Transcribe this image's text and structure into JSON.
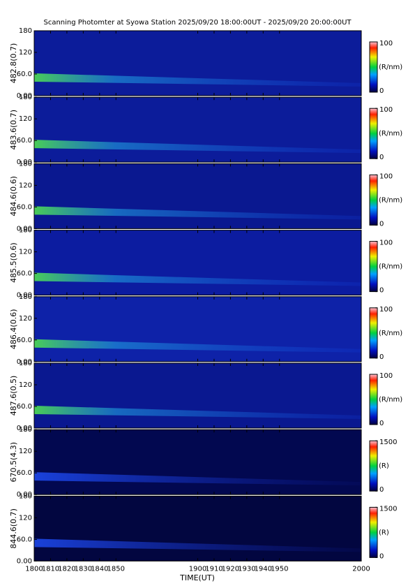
{
  "chart_data": {
    "type": "heatmap",
    "title": "Scanning Photomter at Syowa Station 2025/09/20 18:00:00UT - 2025/09/20 20:00:00UT",
    "xlabel": "TIME(UT)",
    "xlim": [
      1800,
      2000
    ],
    "xticks": [
      1800,
      1810,
      1820,
      1830,
      1840,
      1850,
      1900,
      1910,
      1920,
      1930,
      1940,
      1950,
      2000
    ],
    "panels": [
      {
        "ylabel": "482.8(0.7)",
        "ylim": [
          0,
          180
        ],
        "yticks": [
          {
            "value": 0,
            "label": "0.00"
          },
          {
            "value": 60,
            "label": "60.0"
          },
          120,
          180
        ],
        "clim": [
          0,
          100
        ],
        "cticks": [
          0,
          100
        ],
        "clabel": "(R/nm)"
      },
      {
        "ylabel": "483.6(0.7)",
        "ylim": [
          0,
          180
        ],
        "yticks": [
          {
            "value": 0,
            "label": "0.00"
          },
          {
            "value": 60,
            "label": "60.0"
          },
          120,
          180
        ],
        "clim": [
          0,
          100
        ],
        "cticks": [
          0,
          100
        ],
        "clabel": "(R/nm)"
      },
      {
        "ylabel": "484.6(0.6)",
        "ylim": [
          0,
          180
        ],
        "yticks": [
          {
            "value": 0,
            "label": "0.00"
          },
          {
            "value": 60,
            "label": "60.0"
          },
          120,
          180
        ],
        "clim": [
          0,
          100
        ],
        "cticks": [
          0,
          100
        ],
        "clabel": "(R/nm)"
      },
      {
        "ylabel": "485.5(0.6)",
        "ylim": [
          0,
          180
        ],
        "yticks": [
          {
            "value": 0,
            "label": "0.00"
          },
          {
            "value": 60,
            "label": "60.0"
          },
          120,
          180
        ],
        "clim": [
          0,
          100
        ],
        "cticks": [
          0,
          100
        ],
        "clabel": "(R/nm)"
      },
      {
        "ylabel": "486.4(0.6)",
        "ylim": [
          0,
          180
        ],
        "yticks": [
          {
            "value": 0,
            "label": "0.00"
          },
          {
            "value": 60,
            "label": "60.0"
          },
          120,
          180
        ],
        "clim": [
          0,
          100
        ],
        "cticks": [
          0,
          100
        ],
        "clabel": "(R/nm)"
      },
      {
        "ylabel": "487.6(0.5)",
        "ylim": [
          0,
          180
        ],
        "yticks": [
          {
            "value": 0,
            "label": "0.00"
          },
          {
            "value": 60,
            "label": "60.0"
          },
          120,
          180
        ],
        "clim": [
          0,
          100
        ],
        "cticks": [
          0,
          100
        ],
        "clabel": "(R/nm)"
      },
      {
        "ylabel": "670.5(4.3)",
        "ylim": [
          0,
          180
        ],
        "yticks": [
          {
            "value": 0,
            "label": "0.00"
          },
          {
            "value": 60,
            "label": "60.0"
          },
          120,
          180
        ],
        "clim": [
          0,
          1500
        ],
        "cticks": [
          0,
          1500
        ],
        "clabel": "(R)"
      },
      {
        "ylabel": "844.6(0.7)",
        "ylim": [
          0,
          180
        ],
        "yticks": [
          {
            "value": 0,
            "label": "0.00"
          },
          {
            "value": 60,
            "label": "60.0"
          },
          120,
          180
        ],
        "clim": [
          0,
          1500
        ],
        "cticks": [
          0,
          1500
        ],
        "clabel": "(R)"
      }
    ]
  }
}
